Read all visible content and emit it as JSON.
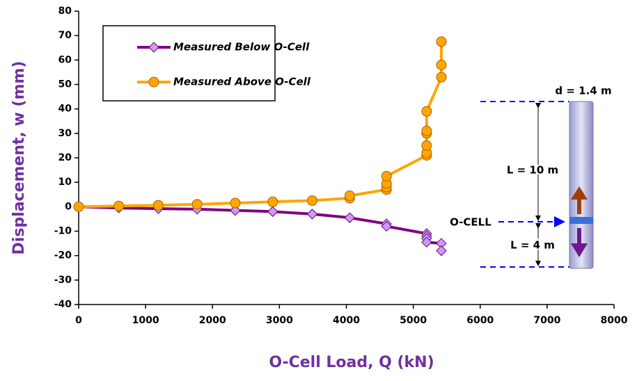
{
  "chart_data": {
    "type": "line",
    "x_label": "O-Cell Load, Q (kN)",
    "y_label": "Displacement,  w (mm)",
    "xlim": [
      0,
      8000
    ],
    "xticks": [
      0,
      1000,
      2000,
      3000,
      4000,
      5000,
      6000,
      7000,
      8000
    ],
    "ylim": [
      -40,
      80
    ],
    "yticks": [
      -40,
      -30,
      -20,
      -10,
      0,
      10,
      20,
      30,
      40,
      50,
      60,
      70,
      80
    ],
    "legend": "upper left",
    "series": [
      {
        "name": "Measured Below O-Cell",
        "color": "#800080",
        "marker": "diamond",
        "x": [
          0,
          600,
          1190,
          1770,
          2340,
          2900,
          3490,
          4050,
          4600,
          4600,
          5200,
          5200,
          5200,
          5200,
          5420,
          5420
        ],
        "values": [
          0,
          -0.5,
          -0.8,
          -1,
          -1.5,
          -2,
          -3,
          -4.5,
          -7,
          -8,
          -11,
          -12,
          -13,
          -14.5,
          -15,
          -18
        ]
      },
      {
        "name": "Measured Above O-Cell",
        "color": "#ffa500",
        "marker": "circle",
        "x": [
          0,
          600,
          1190,
          1770,
          2340,
          2900,
          3490,
          4050,
          4050,
          4600,
          4600,
          4600,
          4600,
          5200,
          5200,
          5200,
          5200,
          5200,
          5200,
          5420,
          5420,
          5420
        ],
        "values": [
          0,
          0.3,
          0.6,
          1,
          1.5,
          2,
          2.5,
          3.5,
          4.5,
          7,
          8,
          9.5,
          12.5,
          21,
          22,
          25,
          30,
          31,
          39,
          53,
          58,
          67.5
        ]
      }
    ],
    "annotations": [
      "d = 1.4 m",
      "L = 10 m",
      "O-CELL",
      "L = 4 m"
    ]
  }
}
